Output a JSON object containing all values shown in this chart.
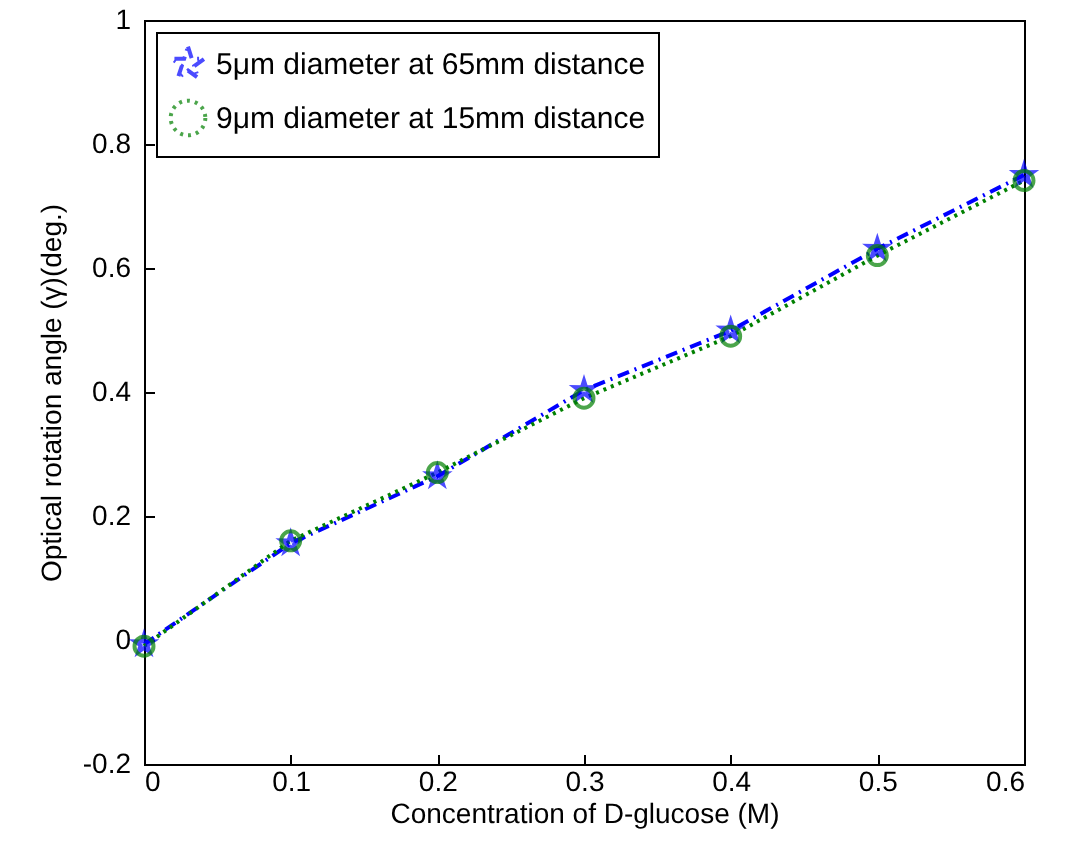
{
  "chart_data": {
    "type": "line",
    "xlabel": "Concentration of D-glucose (M)",
    "ylabel": "Optical rotation angle (γ)(deg.)",
    "x": [
      0,
      0.1,
      0.2,
      0.3,
      0.4,
      0.5,
      0.6
    ],
    "series": [
      {
        "name": "5μm diameter at 65mm distance",
        "color": "#0000ff",
        "marker": "star",
        "line_style": "dashed",
        "values": [
          -0.007,
          0.156,
          0.264,
          0.403,
          0.499,
          0.631,
          0.75
        ]
      },
      {
        "name": "9μm diameter at 15mm distance",
        "color": "#008000",
        "marker": "circle",
        "line_style": "dotted",
        "values": [
          -0.01,
          0.16,
          0.27,
          0.39,
          0.49,
          0.62,
          0.741
        ]
      }
    ],
    "xlim": [
      0,
      0.6
    ],
    "xticks": [
      0,
      0.1,
      0.2,
      0.3,
      0.4,
      0.5,
      0.6
    ],
    "ylim": [
      -0.2,
      1
    ],
    "yticks": [
      -0.2,
      0,
      0.2,
      0.4,
      0.6,
      0.8,
      1
    ],
    "grid": false,
    "legend": "top left"
  }
}
